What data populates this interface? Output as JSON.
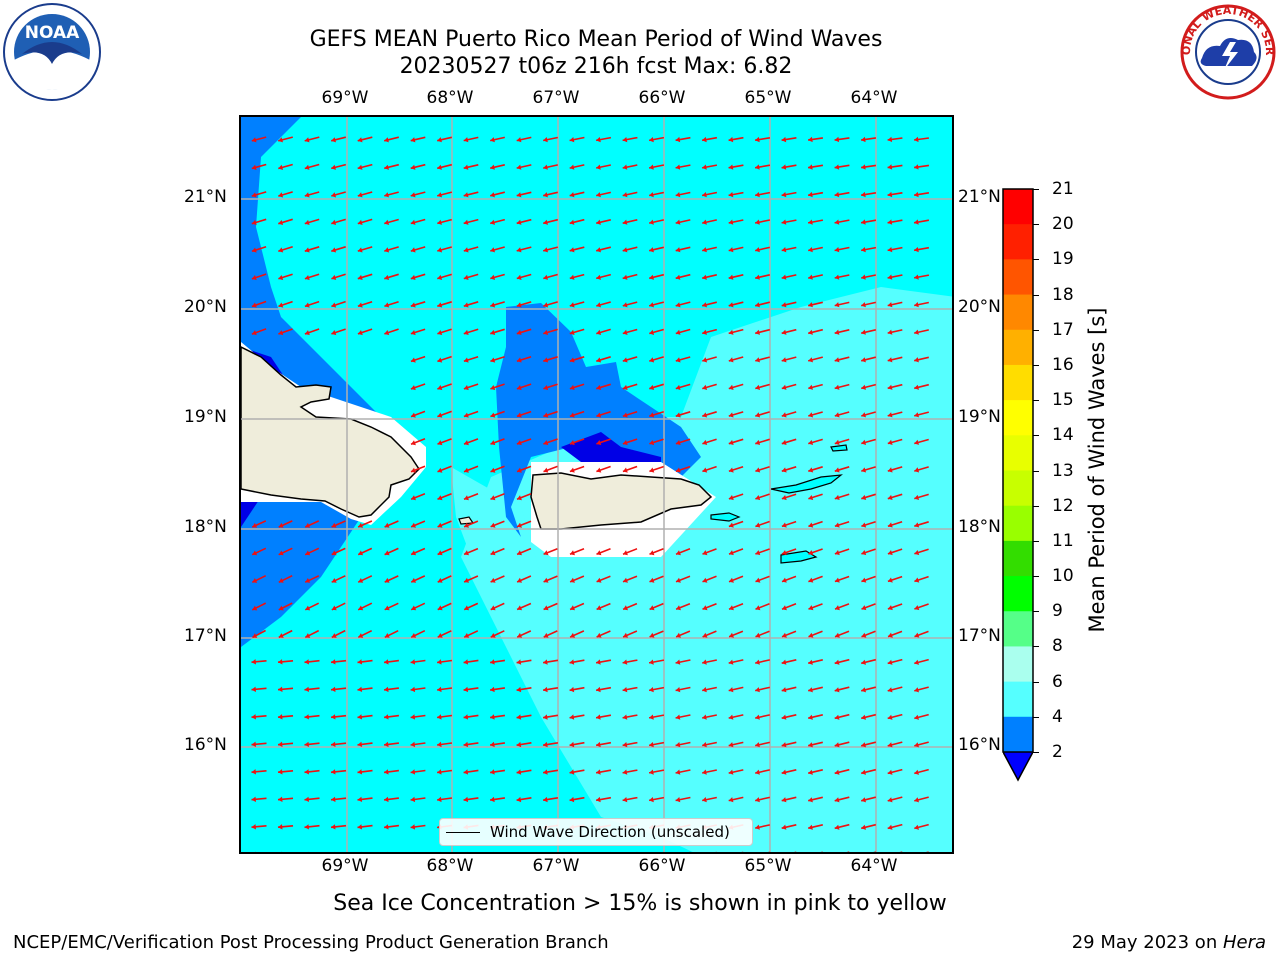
{
  "title": {
    "line1": "GEFS MEAN Puerto Rico Mean Period of Wind Waves",
    "line2": "20230527 t06z 216h fcst   Max: 6.82"
  },
  "lon_labels": [
    "69°W",
    "68°W",
    "67°W",
    "66°W",
    "65°W",
    "64°W"
  ],
  "lat_labels": [
    "21°N",
    "20°N",
    "19°N",
    "18°N",
    "17°N",
    "16°N"
  ],
  "colorbar": {
    "label": "Mean Period of Wind Waves [s]",
    "ticks": [
      "21",
      "20",
      "19",
      "18",
      "17",
      "16",
      "15",
      "14",
      "13",
      "12",
      "11",
      "10",
      "9",
      "8",
      "6",
      "4",
      "2"
    ],
    "colors": [
      "#ff0000",
      "#ff2600",
      "#ff5a00",
      "#ff8c00",
      "#ffb400",
      "#ffe000",
      "#ffff00",
      "#e6ff00",
      "#c8ff00",
      "#96ff00",
      "#32d200",
      "#00ff00",
      "#55ff99",
      "#aaffee",
      "#55ffff",
      "#00ffff",
      "#0080ff",
      "#0000ff"
    ]
  },
  "legend": {
    "label": "Wind Wave Direction (unscaled)"
  },
  "footer": {
    "sea_ice": "Sea Ice Concentration > 15% is shown in pink to yellow",
    "left": "NCEP/EMC/Verification Post Processing Product Generation Branch",
    "right_date": "29 May 2023 on ",
    "right_machine": "Hera"
  },
  "logos": {
    "left": "NOAA",
    "right": "NATIONAL WEATHER SERVICE"
  }
}
